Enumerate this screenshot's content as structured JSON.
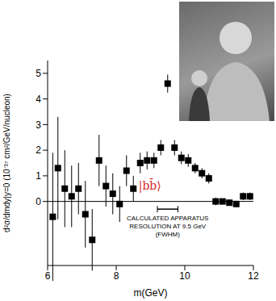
{
  "chart_data": {
    "type": "scatter",
    "x": [
      6.15,
      6.3,
      6.5,
      6.7,
      6.9,
      7.1,
      7.3,
      7.5,
      7.7,
      7.9,
      8.1,
      8.3,
      8.5,
      8.7,
      8.9,
      9.1,
      9.3,
      9.5,
      9.7,
      9.9,
      10.1,
      10.3,
      10.5,
      10.7,
      10.9,
      11.1,
      11.3,
      11.5,
      11.7,
      11.9
    ],
    "values": [
      -0.6,
      1.3,
      0.5,
      0.2,
      0.5,
      -0.5,
      -1.5,
      1.6,
      0.6,
      0.3,
      -0.1,
      1.2,
      0.5,
      1.5,
      1.6,
      1.6,
      2.1,
      4.6,
      2.1,
      1.7,
      1.6,
      1.3,
      1.1,
      0.9,
      0.0,
      0.0,
      -0.05,
      -0.1,
      0.2,
      0.2
    ],
    "errors": [
      2.5,
      2.0,
      1.5,
      1.2,
      1.0,
      1.3,
      1.2,
      1.0,
      0.8,
      0.8,
      0.7,
      0.6,
      0.5,
      0.4,
      0.35,
      0.3,
      0.3,
      0.35,
      0.3,
      0.25,
      0.25,
      0.2,
      0.2,
      0.2,
      0.15,
      0.1,
      0.1,
      0.1,
      0.15,
      0.15
    ],
    "xlabel": "m(GeV)",
    "ylabel": "d²σ/dmdy|y=0 (10⁻³⁷ cm²/GeV/nucleon)",
    "xlim": [
      6,
      12
    ],
    "xticks": [
      6,
      8,
      10,
      12
    ],
    "ylim": [
      -2.5,
      5.5
    ],
    "yticks": [
      0,
      1,
      2,
      3,
      4,
      5
    ],
    "marker": "square",
    "color": "#000000",
    "grid": false,
    "hlines": [
      0
    ],
    "annotations": [
      {
        "text": "|bb̄⟩",
        "color": "#d62728"
      }
    ],
    "resolution": {
      "x": [
        9.2,
        9.8
      ],
      "y": -0.3,
      "text": [
        "CALCULATED APPARATUS",
        "RESOLUTION AT 9.5 GeV",
        "(FWHM)"
      ]
    }
  }
}
